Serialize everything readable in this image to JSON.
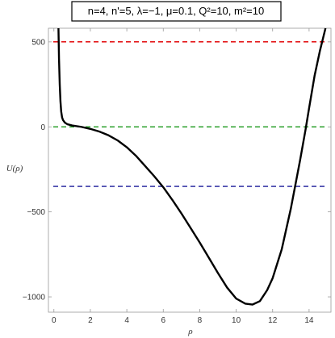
{
  "chart_data": {
    "type": "line",
    "title": "n=4, n'=5, λ=−1, μ=0.1, Q²=10, m²=10",
    "xlabel": "ρ",
    "ylabel": "U(ρ)",
    "xlim": [
      -0.3,
      15.2
    ],
    "ylim": [
      -1090,
      580
    ],
    "x_ticks": [
      0,
      2,
      4,
      6,
      8,
      10,
      12,
      14
    ],
    "y_ticks": [
      -1000,
      -500,
      0,
      500
    ],
    "grid": false,
    "curve": {
      "name": "",
      "color": "#000000",
      "x": [
        0.25,
        0.28,
        0.32,
        0.36,
        0.4,
        0.45,
        0.5,
        0.6,
        0.75,
        1.0,
        1.5,
        2.0,
        2.5,
        3.0,
        3.5,
        4.0,
        4.5,
        5.0,
        5.5,
        6.0,
        6.5,
        7.0,
        7.5,
        8.0,
        8.5,
        9.0,
        9.5,
        10.0,
        10.5,
        10.9,
        11.3,
        11.7,
        12.0,
        12.5,
        13.0,
        13.5,
        13.8,
        14.0,
        14.3,
        14.6,
        14.9
      ],
      "y": [
        580,
        400,
        250,
        150,
        90,
        55,
        40,
        25,
        15,
        8,
        0,
        -12,
        -28,
        -50,
        -80,
        -120,
        -170,
        -230,
        -290,
        -355,
        -430,
        -510,
        -595,
        -680,
        -770,
        -860,
        -945,
        -1010,
        -1040,
        -1045,
        -1025,
        -960,
        -890,
        -720,
        -480,
        -200,
        -20,
        110,
        300,
        450,
        580
      ]
    },
    "hlines": [
      {
        "y": 500,
        "color": "#e41a1c",
        "style": "dashed"
      },
      {
        "y": 0,
        "color": "#2ca02c",
        "style": "dashed"
      },
      {
        "y": -350,
        "color": "#3a3aa8",
        "style": "dashed"
      }
    ]
  }
}
